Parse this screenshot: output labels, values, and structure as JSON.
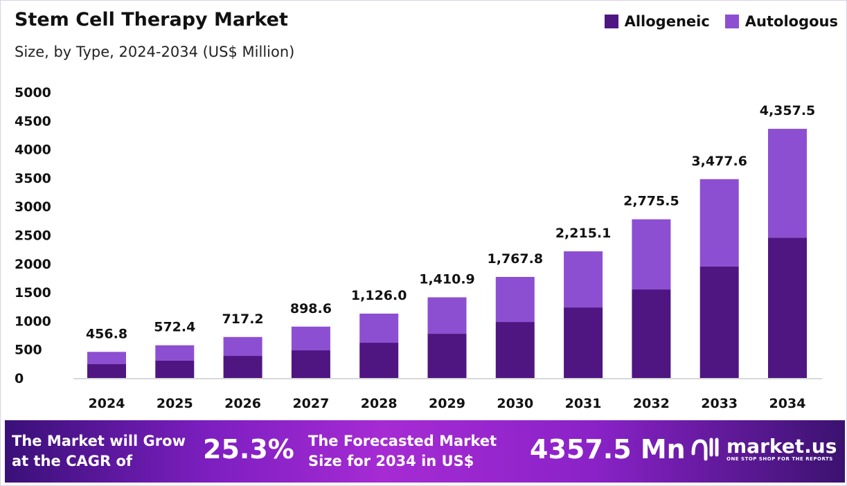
{
  "chart_data": {
    "type": "bar",
    "stacked": true,
    "title": "Stem Cell Therapy Market",
    "subtitle": "Size, by Type, 2024-2034 (US$ Million)",
    "categories": [
      "2024",
      "2025",
      "2026",
      "2027",
      "2028",
      "2029",
      "2030",
      "2031",
      "2032",
      "2033",
      "2034"
    ],
    "series": [
      {
        "name": "Allogeneic",
        "color": "#4f1682",
        "values": [
          242,
          303,
          387,
          484,
          617,
          774,
          980,
          1234,
          1549,
          1950,
          2455
        ]
      },
      {
        "name": "Autologous",
        "color": "#8d4fd1",
        "values": [
          214.8,
          269.4,
          330.2,
          414.6,
          509.0,
          636.9,
          787.8,
          981.1,
          1226.5,
          1527.6,
          1902.5
        ]
      }
    ],
    "totals": [
      456.8,
      572.4,
      717.2,
      898.6,
      1126.0,
      1410.9,
      1767.8,
      2215.1,
      2775.5,
      3477.6,
      4357.5
    ],
    "data_labels": [
      "456.8",
      "572.4",
      "717.2",
      "898.6",
      "1,126.0",
      "1,410.9",
      "1,767.8",
      "2,215.1",
      "2,775.5",
      "3,477.6",
      "4,357.5"
    ],
    "yticks": [
      "0",
      "500",
      "1000",
      "1500",
      "2000",
      "2500",
      "3000",
      "3500",
      "4000",
      "4500",
      "5000"
    ],
    "ylim": [
      0,
      5000
    ],
    "grid": false,
    "legend_position": "top-right"
  },
  "banner": {
    "cagr_text": "The Market will Grow at the CAGR of",
    "cagr_value": "25.3%",
    "forecast_text": "The Forecasted Market Size for 2034 in US$",
    "forecast_value": "4357.5 Mn",
    "brand": "market.us",
    "tagline": "ONE STOP SHOP FOR THE REPORTS"
  }
}
